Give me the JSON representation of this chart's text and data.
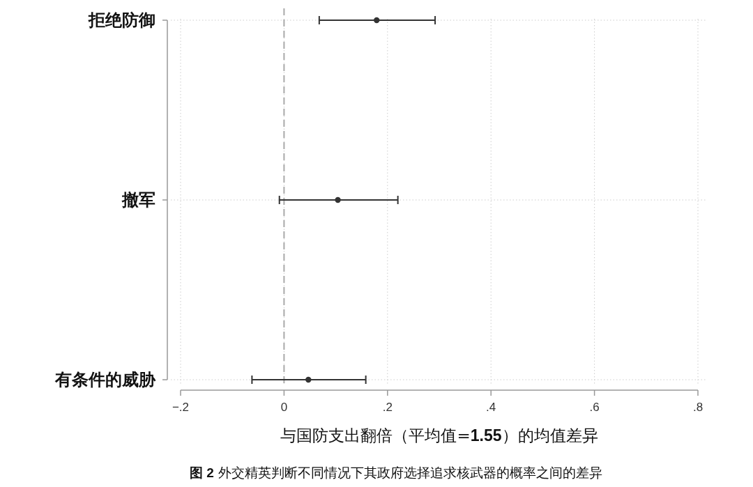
{
  "chart_data": {
    "type": "scatter",
    "orientation": "horizontal",
    "categories": [
      "拒绝防御",
      "撤军",
      "有条件的威胁"
    ],
    "values": [
      0.179,
      0.104,
      0.047
    ],
    "errors": [
      [
        0.068,
        0.292
      ],
      [
        -0.009,
        0.22
      ],
      [
        -0.062,
        0.158
      ]
    ],
    "color": "#333333",
    "marker": "circle",
    "grid": true,
    "xlim": [
      -0.2,
      0.8
    ],
    "xticks": [
      {
        "value": -0.2,
        "label": "−.2"
      },
      0,
      {
        "value": 0.2,
        "label": ".2"
      },
      {
        "value": 0.4,
        "label": ".4"
      },
      {
        "value": 0.6,
        "label": ".6"
      },
      {
        "value": 0.8,
        "label": ".8"
      }
    ],
    "xlabel": "与国防支出翻倍（平均值=**1.55**）的均值差异",
    "ref_lines": [
      {
        "axis": "x",
        "value": 0,
        "color": "#aaaaaa",
        "line_style": "dashed"
      }
    ],
    "annotations": [
      "**图 2** 外交精英判断不同情况下其政府选择追求核武器的概率之间的差异"
    ]
  }
}
